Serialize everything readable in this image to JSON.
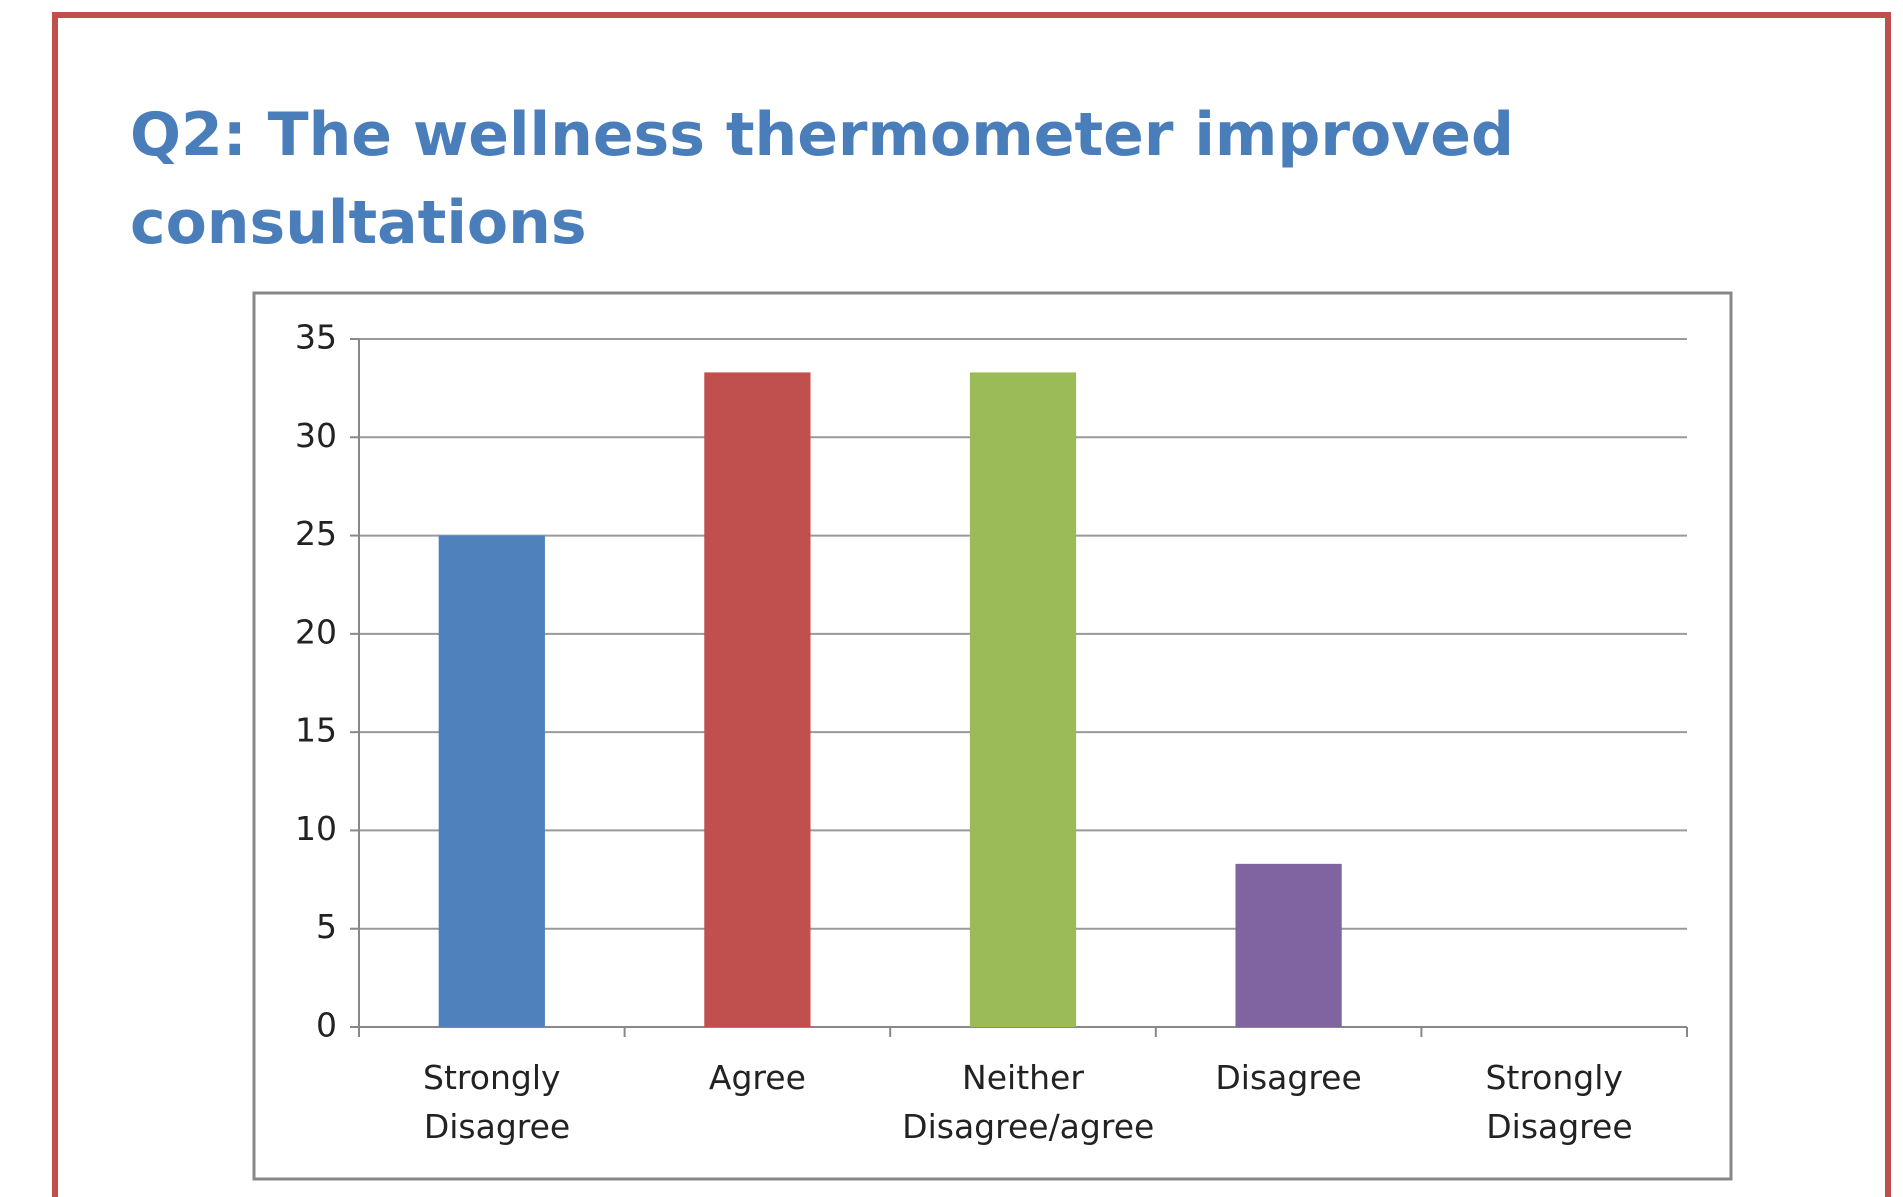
{
  "chart_data": {
    "type": "bar",
    "title_lines": [
      "Q2: The wellness thermometer improved",
      "consultations"
    ],
    "categories": [
      "Strongly Disagree",
      "Agree",
      "Neither Disagree/agree",
      "Disagree",
      "Strongly Disagree"
    ],
    "values": [
      25,
      33.3,
      33.3,
      8.3,
      0
    ],
    "colors": [
      "#4f81bd",
      "#c0504d",
      "#9bbb59",
      "#8064a2",
      "#4bacc6"
    ],
    "ylim": [
      0,
      35
    ],
    "yticks": [
      0,
      5,
      10,
      15,
      20,
      25,
      30,
      35
    ],
    "grid": true
  }
}
